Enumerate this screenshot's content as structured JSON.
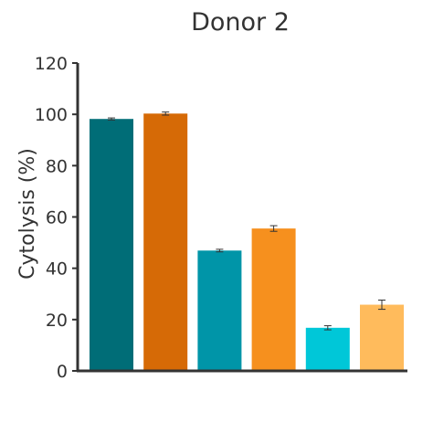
{
  "chart_data": {
    "type": "bar",
    "title": "Donor 2",
    "xlabel": "",
    "ylabel": "Cytolysis (%)",
    "ylim": [
      0,
      120
    ],
    "yticks": [
      0,
      20,
      40,
      60,
      80,
      100,
      120
    ],
    "grid": false,
    "legend": "none",
    "categories": [
      "",
      "",
      "",
      "",
      "",
      ""
    ],
    "values": [
      98.2,
      100.3,
      46.9,
      55.5,
      16.8,
      25.8
    ],
    "errors": [
      0.4,
      0.6,
      0.5,
      1.1,
      0.8,
      1.8
    ],
    "colors": [
      "#006d77",
      "#d66a06",
      "#0095a8",
      "#f6901e",
      "#00c7d8",
      "#ffbb5c"
    ]
  }
}
